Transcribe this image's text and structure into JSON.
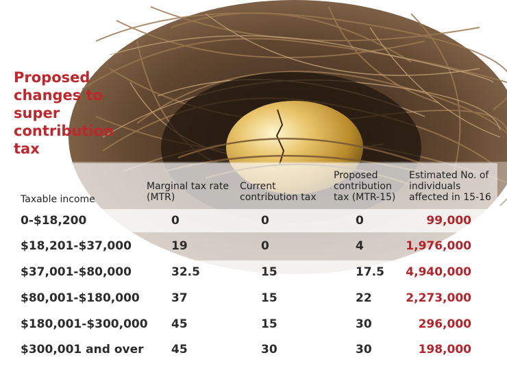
{
  "title": "Proposed changes to super contribution tax",
  "columns": {
    "income": "Taxable income",
    "mtr": "Marginal tax rate (MTR)",
    "current": "Current contribution tax",
    "proposed": "Proposed contribution tax (MTR-15)",
    "estimated": "Estimated No. of individuals affected in 15-16"
  },
  "rows": [
    {
      "income": "0-$18,200",
      "mtr": "0",
      "current": "0",
      "proposed": "0",
      "estimated": "99,000"
    },
    {
      "income": "$18,201-$37,000",
      "mtr": "19",
      "current": "0",
      "proposed": "4",
      "estimated": "1,976,000"
    },
    {
      "income": "$37,001-$80,000",
      "mtr": "32.5",
      "current": "15",
      "proposed": "17.5",
      "estimated": "4,940,000"
    },
    {
      "income": "$80,001-$180,000",
      "mtr": "37",
      "current": "15",
      "proposed": "22",
      "estimated": "2,273,000"
    },
    {
      "income": "$180,001-$300,000",
      "mtr": "45",
      "current": "15",
      "proposed": "30",
      "estimated": "296,000"
    },
    {
      "income": "$300,001 and over",
      "mtr": "45",
      "current": "30",
      "proposed": "30",
      "estimated": "198,000"
    }
  ],
  "colors": {
    "accent": "#c0272d",
    "egg_gold": "#d8a93a",
    "nest_brown": "#6b4a2b"
  }
}
